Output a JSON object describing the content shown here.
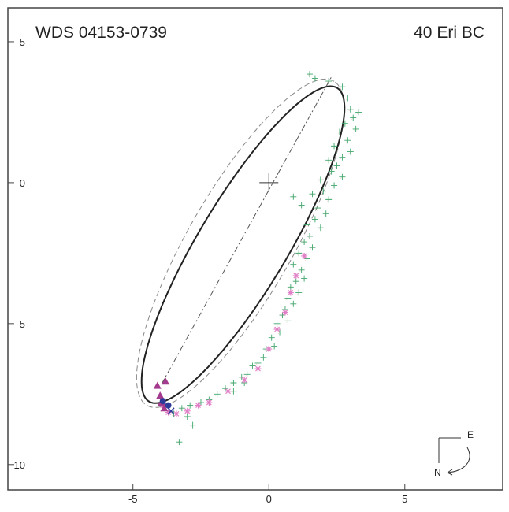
{
  "chart_data": {
    "type": "scatter",
    "title_left": "WDS 04153-0739",
    "title_right": "40 Eri BC",
    "xlabel": "",
    "ylabel": "",
    "xlim": [
      -9.6,
      8.6
    ],
    "ylim": [
      -10.9,
      6.2
    ],
    "x_ticks": [
      {
        "value": -5,
        "label": "-5"
      },
      {
        "value": 0,
        "label": "0"
      },
      {
        "value": 5,
        "label": "5"
      }
    ],
    "y_ticks": [
      {
        "value": 5,
        "label": "5"
      },
      {
        "value": 0,
        "label": "0"
      },
      {
        "value": -5,
        "label": "-5"
      },
      {
        "value": -10,
        "label": "-10"
      }
    ],
    "grid": false,
    "orbit_ellipse": {
      "cx": -0.95,
      "cy": -2.2,
      "a": 6.55,
      "b": 1.62,
      "angle_deg": 58
    },
    "previous_orbit_ellipse": {
      "cx": -1.05,
      "cy": -2.15,
      "a": 6.7,
      "b": 1.9,
      "angle_deg": 59
    },
    "line_of_nodes": {
      "x1": -3.95,
      "y1": -7.15,
      "x2": 2.3,
      "y2": 3.75
    },
    "primary_marker": {
      "x": 0,
      "y": 0
    },
    "series": [
      {
        "marker": "plus",
        "color": "#3aa86a",
        "points": [
          [
            1.5,
            3.85
          ],
          [
            1.7,
            3.7
          ],
          [
            2.2,
            3.6
          ],
          [
            2.7,
            3.4
          ],
          [
            2.9,
            3.0
          ],
          [
            3.0,
            2.6
          ],
          [
            3.3,
            2.5
          ],
          [
            3.1,
            2.3
          ],
          [
            2.8,
            2.1
          ],
          [
            3.2,
            1.9
          ],
          [
            2.6,
            1.8
          ],
          [
            2.9,
            1.5
          ],
          [
            2.4,
            1.3
          ],
          [
            3.0,
            1.1
          ],
          [
            2.7,
            0.9
          ],
          [
            2.2,
            0.8
          ],
          [
            2.5,
            0.6
          ],
          [
            2.3,
            0.4
          ],
          [
            2.7,
            0.2
          ],
          [
            1.9,
            0.1
          ],
          [
            2.4,
            -0.1
          ],
          [
            2.0,
            -0.3
          ],
          [
            2.2,
            -0.6
          ],
          [
            1.6,
            -0.4
          ],
          [
            1.8,
            -0.9
          ],
          [
            2.1,
            -1.1
          ],
          [
            1.7,
            -1.3
          ],
          [
            1.4,
            -1.5
          ],
          [
            1.9,
            -1.6
          ],
          [
            1.5,
            -1.9
          ],
          [
            1.3,
            -2.1
          ],
          [
            1.6,
            -2.3
          ],
          [
            1.1,
            -2.5
          ],
          [
            1.4,
            -2.7
          ],
          [
            0.9,
            -2.9
          ],
          [
            1.2,
            -3.1
          ],
          [
            1.3,
            -3.4
          ],
          [
            1.0,
            -3.5
          ],
          [
            0.8,
            -3.7
          ],
          [
            1.1,
            -3.9
          ],
          [
            0.7,
            -4.1
          ],
          [
            0.9,
            -4.3
          ],
          [
            0.6,
            -4.5
          ],
          [
            0.5,
            -4.7
          ],
          [
            0.7,
            -4.9
          ],
          [
            0.3,
            -5.0
          ],
          [
            0.4,
            -5.3
          ],
          [
            0.1,
            -5.5
          ],
          [
            0.2,
            -5.8
          ],
          [
            -0.1,
            -5.9
          ],
          [
            -0.2,
            -6.2
          ],
          [
            -0.4,
            -6.4
          ],
          [
            -0.6,
            -6.5
          ],
          [
            -0.8,
            -6.8
          ],
          [
            -1.0,
            -6.9
          ],
          [
            -1.3,
            -7.1
          ],
          [
            -1.6,
            -7.3
          ],
          [
            -1.9,
            -7.5
          ],
          [
            -2.2,
            -7.7
          ],
          [
            -2.5,
            -7.8
          ],
          [
            -2.9,
            -7.9
          ],
          [
            -3.2,
            -8.0
          ],
          [
            -3.0,
            -8.3
          ],
          [
            -3.3,
            -9.2
          ],
          [
            -2.8,
            -8.6
          ],
          [
            -1.3,
            -7.4
          ],
          [
            -0.9,
            -7.1
          ],
          [
            -3.5,
            -8.2
          ],
          [
            0.9,
            -0.5
          ],
          [
            1.2,
            -0.8
          ]
        ]
      },
      {
        "marker": "star",
        "color": "#e07fc6",
        "points": [
          [
            1.3,
            -2.6
          ],
          [
            1.0,
            -3.3
          ],
          [
            0.8,
            -3.9
          ],
          [
            0.6,
            -4.6
          ],
          [
            0.3,
            -5.2
          ],
          [
            0.0,
            -5.9
          ],
          [
            -0.4,
            -6.6
          ],
          [
            -0.9,
            -7.0
          ],
          [
            -1.5,
            -7.4
          ],
          [
            -2.2,
            -7.8
          ],
          [
            -2.6,
            -7.9
          ],
          [
            -3.0,
            -8.1
          ],
          [
            -3.4,
            -8.2
          ],
          [
            -3.7,
            -8.15
          ],
          [
            -3.9,
            -7.9
          ]
        ]
      },
      {
        "marker": "triangle",
        "color": "#a33a8e",
        "points": [
          [
            -3.8,
            -7.05
          ],
          [
            -4.1,
            -7.2
          ],
          [
            -4.0,
            -7.55
          ],
          [
            -3.95,
            -7.8
          ],
          [
            -3.85,
            -8.0
          ]
        ]
      },
      {
        "marker": "circle",
        "color": "#2e3a9a",
        "points": [
          [
            -3.9,
            -7.75
          ],
          [
            -3.7,
            -7.9
          ]
        ]
      },
      {
        "marker": "cross",
        "color": "#2e3a9a",
        "points": [
          [
            -3.6,
            -8.1
          ]
        ]
      }
    ],
    "compass": {
      "east_label": "E",
      "north_label": "N"
    }
  }
}
